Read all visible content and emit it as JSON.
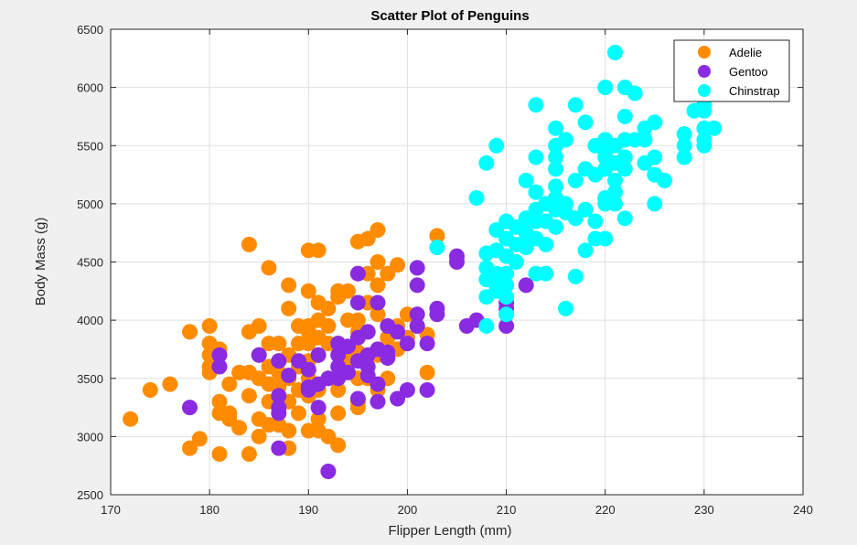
{
  "chart_data": {
    "type": "scatter",
    "title": "Scatter Plot of Penguins",
    "xlabel": "Flipper Length (mm)",
    "ylabel": "Body Mass (g)",
    "xlim": [
      170,
      240
    ],
    "ylim": [
      2500,
      6500
    ],
    "xticks": [
      170,
      180,
      190,
      200,
      210,
      220,
      230,
      240
    ],
    "yticks": [
      2500,
      3000,
      3500,
      4000,
      4500,
      5000,
      5500,
      6000,
      6500
    ],
    "grid": true,
    "legend_position": "top-right",
    "series": [
      {
        "name": "Adelie",
        "color": "#ff8c00",
        "points": [
          [
            172,
            3150
          ],
          [
            174,
            3400
          ],
          [
            176,
            3450
          ],
          [
            178,
            3900
          ],
          [
            178,
            2900
          ],
          [
            179,
            2980
          ],
          [
            180,
            3950
          ],
          [
            180,
            3800
          ],
          [
            180,
            3700
          ],
          [
            180,
            3600
          ],
          [
            180,
            3550
          ],
          [
            181,
            3300
          ],
          [
            181,
            3200
          ],
          [
            181,
            2850
          ],
          [
            181,
            3750
          ],
          [
            182,
            3200
          ],
          [
            182,
            3150
          ],
          [
            182,
            3450
          ],
          [
            183,
            3550
          ],
          [
            183,
            3075
          ],
          [
            184,
            3900
          ],
          [
            184,
            3550
          ],
          [
            184,
            3350
          ],
          [
            184,
            4650
          ],
          [
            184,
            2850
          ],
          [
            185,
            3950
          ],
          [
            185,
            3700
          ],
          [
            185,
            3500
          ],
          [
            185,
            3150
          ],
          [
            185,
            3000
          ],
          [
            186,
            4450
          ],
          [
            186,
            3800
          ],
          [
            186,
            3600
          ],
          [
            186,
            3450
          ],
          [
            186,
            3300
          ],
          [
            186,
            3100
          ],
          [
            187,
            3800
          ],
          [
            187,
            3650
          ],
          [
            187,
            3550
          ],
          [
            187,
            3425
          ],
          [
            187,
            3100
          ],
          [
            188,
            4300
          ],
          [
            188,
            4100
          ],
          [
            188,
            3700
          ],
          [
            188,
            3500
          ],
          [
            188,
            3300
          ],
          [
            188,
            3050
          ],
          [
            188,
            2900
          ],
          [
            189,
            3950
          ],
          [
            189,
            3800
          ],
          [
            189,
            3600
          ],
          [
            189,
            3400
          ],
          [
            189,
            3200
          ],
          [
            190,
            4600
          ],
          [
            190,
            4250
          ],
          [
            190,
            3950
          ],
          [
            190,
            3900
          ],
          [
            190,
            3800
          ],
          [
            190,
            3650
          ],
          [
            190,
            3500
          ],
          [
            190,
            3350
          ],
          [
            190,
            3050
          ],
          [
            191,
            4600
          ],
          [
            191,
            4150
          ],
          [
            191,
            4000
          ],
          [
            191,
            3850
          ],
          [
            191,
            3700
          ],
          [
            191,
            3400
          ],
          [
            191,
            3150
          ],
          [
            191,
            3050
          ],
          [
            192,
            4100
          ],
          [
            192,
            3950
          ],
          [
            192,
            3800
          ],
          [
            192,
            3500
          ],
          [
            192,
            3000
          ],
          [
            193,
            4250
          ],
          [
            193,
            4200
          ],
          [
            193,
            3800
          ],
          [
            193,
            3400
          ],
          [
            193,
            3200
          ],
          [
            193,
            2925
          ],
          [
            194,
            4250
          ],
          [
            194,
            4000
          ],
          [
            194,
            3650
          ],
          [
            195,
            4675
          ],
          [
            195,
            4400
          ],
          [
            195,
            4000
          ],
          [
            195,
            3900
          ],
          [
            195,
            3725
          ],
          [
            195,
            3500
          ],
          [
            195,
            3300
          ],
          [
            195,
            3250
          ],
          [
            196,
            4700
          ],
          [
            196,
            4400
          ],
          [
            196,
            4150
          ],
          [
            196,
            3900
          ],
          [
            196,
            3500
          ],
          [
            197,
            4775
          ],
          [
            197,
            4500
          ],
          [
            197,
            4300
          ],
          [
            197,
            4050
          ],
          [
            197,
            3700
          ],
          [
            197,
            3400
          ],
          [
            198,
            4400
          ],
          [
            198,
            3850
          ],
          [
            198,
            3500
          ],
          [
            199,
            4475
          ],
          [
            199,
            3950
          ],
          [
            199,
            3750
          ],
          [
            200,
            4050
          ],
          [
            200,
            3850
          ],
          [
            201,
            3950
          ],
          [
            202,
            3550
          ],
          [
            202,
            3875
          ],
          [
            203,
            4725
          ]
        ]
      },
      {
        "name": "Gentoo",
        "color": "#8a2be2",
        "points": [
          [
            178,
            3250
          ],
          [
            181,
            3700
          ],
          [
            181,
            3600
          ],
          [
            185,
            3700
          ],
          [
            187,
            3650
          ],
          [
            187,
            3350
          ],
          [
            187,
            3250
          ],
          [
            187,
            3200
          ],
          [
            187,
            2900
          ],
          [
            188,
            3525
          ],
          [
            189,
            3650
          ],
          [
            190,
            3575
          ],
          [
            190,
            3425
          ],
          [
            190,
            3400
          ],
          [
            191,
            3700
          ],
          [
            191,
            3450
          ],
          [
            191,
            3250
          ],
          [
            192,
            3500
          ],
          [
            192,
            2700
          ],
          [
            193,
            3800
          ],
          [
            193,
            3700
          ],
          [
            193,
            3600
          ],
          [
            193,
            3500
          ],
          [
            194,
            3775
          ],
          [
            194,
            3550
          ],
          [
            195,
            4400
          ],
          [
            195,
            4150
          ],
          [
            195,
            3850
          ],
          [
            195,
            3650
          ],
          [
            195,
            3325
          ],
          [
            196,
            3900
          ],
          [
            196,
            3700
          ],
          [
            196,
            3600
          ],
          [
            196,
            3525
          ],
          [
            197,
            4150
          ],
          [
            197,
            3750
          ],
          [
            197,
            3450
          ],
          [
            197,
            3300
          ],
          [
            198,
            3950
          ],
          [
            198,
            3725
          ],
          [
            198,
            3675
          ],
          [
            199,
            3900
          ],
          [
            199,
            3325
          ],
          [
            200,
            3800
          ],
          [
            200,
            3400
          ],
          [
            201,
            4450
          ],
          [
            201,
            4300
          ],
          [
            201,
            4050
          ],
          [
            201,
            3950
          ],
          [
            202,
            3800
          ],
          [
            202,
            3400
          ],
          [
            203,
            4100
          ],
          [
            203,
            4050
          ],
          [
            205,
            4550
          ],
          [
            205,
            4500
          ],
          [
            206,
            3950
          ],
          [
            207,
            4000
          ],
          [
            210,
            4150
          ],
          [
            210,
            4100
          ],
          [
            210,
            3950
          ],
          [
            212,
            4300
          ]
        ]
      },
      {
        "name": "Chinstrap",
        "color": "#00ffff",
        "points": [
          [
            203,
            4625
          ],
          [
            207,
            5050
          ],
          [
            208,
            5350
          ],
          [
            208,
            4575
          ],
          [
            208,
            4450
          ],
          [
            208,
            4350
          ],
          [
            208,
            4200
          ],
          [
            208,
            3950
          ],
          [
            209,
            5500
          ],
          [
            209,
            4775
          ],
          [
            209,
            4600
          ],
          [
            209,
            4400
          ],
          [
            209,
            4300
          ],
          [
            209,
            4250
          ],
          [
            210,
            4850
          ],
          [
            210,
            4700
          ],
          [
            210,
            4550
          ],
          [
            210,
            4400
          ],
          [
            210,
            4300
          ],
          [
            210,
            4200
          ],
          [
            210,
            4050
          ],
          [
            211,
            4800
          ],
          [
            211,
            4650
          ],
          [
            211,
            4500
          ],
          [
            212,
            5200
          ],
          [
            212,
            4875
          ],
          [
            212,
            4750
          ],
          [
            212,
            4625
          ],
          [
            213,
            5850
          ],
          [
            213,
            5400
          ],
          [
            213,
            5100
          ],
          [
            213,
            4950
          ],
          [
            213,
            4850
          ],
          [
            213,
            4700
          ],
          [
            213,
            4400
          ],
          [
            214,
            5000
          ],
          [
            214,
            4850
          ],
          [
            214,
            4650
          ],
          [
            214,
            4400
          ],
          [
            215,
            5650
          ],
          [
            215,
            5500
          ],
          [
            215,
            5400
          ],
          [
            215,
            5300
          ],
          [
            215,
            5150
          ],
          [
            215,
            5050
          ],
          [
            215,
            4950
          ],
          [
            215,
            4800
          ],
          [
            216,
            5550
          ],
          [
            216,
            5000
          ],
          [
            216,
            4925
          ],
          [
            216,
            4100
          ],
          [
            217,
            5850
          ],
          [
            217,
            5200
          ],
          [
            217,
            4875
          ],
          [
            217,
            4375
          ],
          [
            218,
            5700
          ],
          [
            218,
            5300
          ],
          [
            218,
            4950
          ],
          [
            218,
            4600
          ],
          [
            219,
            5500
          ],
          [
            219,
            5250
          ],
          [
            219,
            4850
          ],
          [
            219,
            4700
          ],
          [
            220,
            6000
          ],
          [
            220,
            5550
          ],
          [
            220,
            5450
          ],
          [
            220,
            5400
          ],
          [
            220,
            5300
          ],
          [
            220,
            5050
          ],
          [
            220,
            5000
          ],
          [
            220,
            4700
          ],
          [
            221,
            6300
          ],
          [
            221,
            5500
          ],
          [
            221,
            5350
          ],
          [
            221,
            5200
          ],
          [
            221,
            5100
          ],
          [
            221,
            5000
          ],
          [
            222,
            6000
          ],
          [
            222,
            5750
          ],
          [
            222,
            5550
          ],
          [
            222,
            5400
          ],
          [
            222,
            5300
          ],
          [
            222,
            4875
          ],
          [
            223,
            5950
          ],
          [
            223,
            5550
          ],
          [
            224,
            5650
          ],
          [
            224,
            5550
          ],
          [
            224,
            5350
          ],
          [
            225,
            5700
          ],
          [
            225,
            5400
          ],
          [
            225,
            5250
          ],
          [
            225,
            5000
          ],
          [
            226,
            5200
          ],
          [
            228,
            5600
          ],
          [
            228,
            5500
          ],
          [
            228,
            5400
          ],
          [
            229,
            5800
          ],
          [
            230,
            5850
          ],
          [
            230,
            5800
          ],
          [
            230,
            5650
          ],
          [
            230,
            5550
          ],
          [
            230,
            5500
          ],
          [
            231,
            5650
          ]
        ]
      }
    ]
  }
}
